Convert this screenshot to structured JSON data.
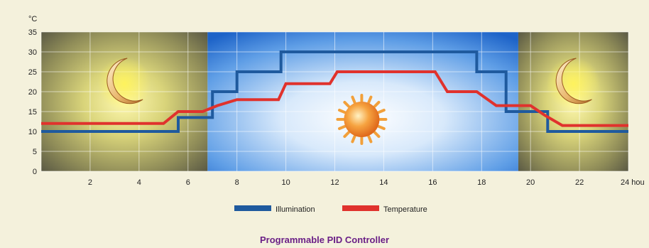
{
  "chart_data": {
    "type": "line",
    "unit_label": "°C",
    "x_unit_label": "24 hou",
    "x_ticks": [
      2,
      4,
      6,
      8,
      10,
      12,
      14,
      16,
      18,
      20,
      22
    ],
    "y_ticks": [
      0,
      5,
      10,
      15,
      20,
      25,
      30,
      35
    ],
    "xlim": [
      0,
      24
    ],
    "ylim": [
      0,
      35
    ],
    "grid": true,
    "legend_position": "bottom-center",
    "series": [
      {
        "name": "Illumination",
        "color": "#1f5a9e",
        "x": [
          0,
          5.6,
          5.6,
          7.0,
          7.0,
          8.0,
          8.0,
          9.8,
          9.8,
          17.8,
          17.8,
          19.0,
          19.0,
          20.7,
          20.7,
          24
        ],
        "y": [
          10,
          10,
          13.5,
          13.5,
          20,
          20,
          25,
          25,
          30,
          30,
          25,
          25,
          15,
          15,
          10,
          10
        ]
      },
      {
        "name": "Temperature",
        "color": "#e0322d",
        "x": [
          0,
          5.0,
          5.6,
          6.6,
          7.2,
          8.0,
          9.7,
          10.0,
          11.8,
          12.1,
          16.1,
          16.6,
          17.8,
          18.6,
          20.0,
          20.6,
          21.3,
          24
        ],
        "y": [
          12,
          12,
          15,
          15,
          16.5,
          18,
          18,
          22,
          22,
          25,
          25,
          20,
          20,
          16.5,
          16.5,
          14,
          11.5,
          11.5
        ]
      }
    ],
    "background_bands": [
      {
        "from": 0,
        "to": 6.8,
        "label": "night",
        "icon": "moon-icon"
      },
      {
        "from": 6.8,
        "to": 19.5,
        "label": "day",
        "icon": "sun-icon"
      },
      {
        "from": 19.5,
        "to": 24,
        "label": "night",
        "icon": "moon-icon"
      }
    ]
  },
  "legend": {
    "illumination": "Illumination",
    "temperature": "Temperature"
  },
  "footer": {
    "title": "Programmable PID Controller"
  }
}
